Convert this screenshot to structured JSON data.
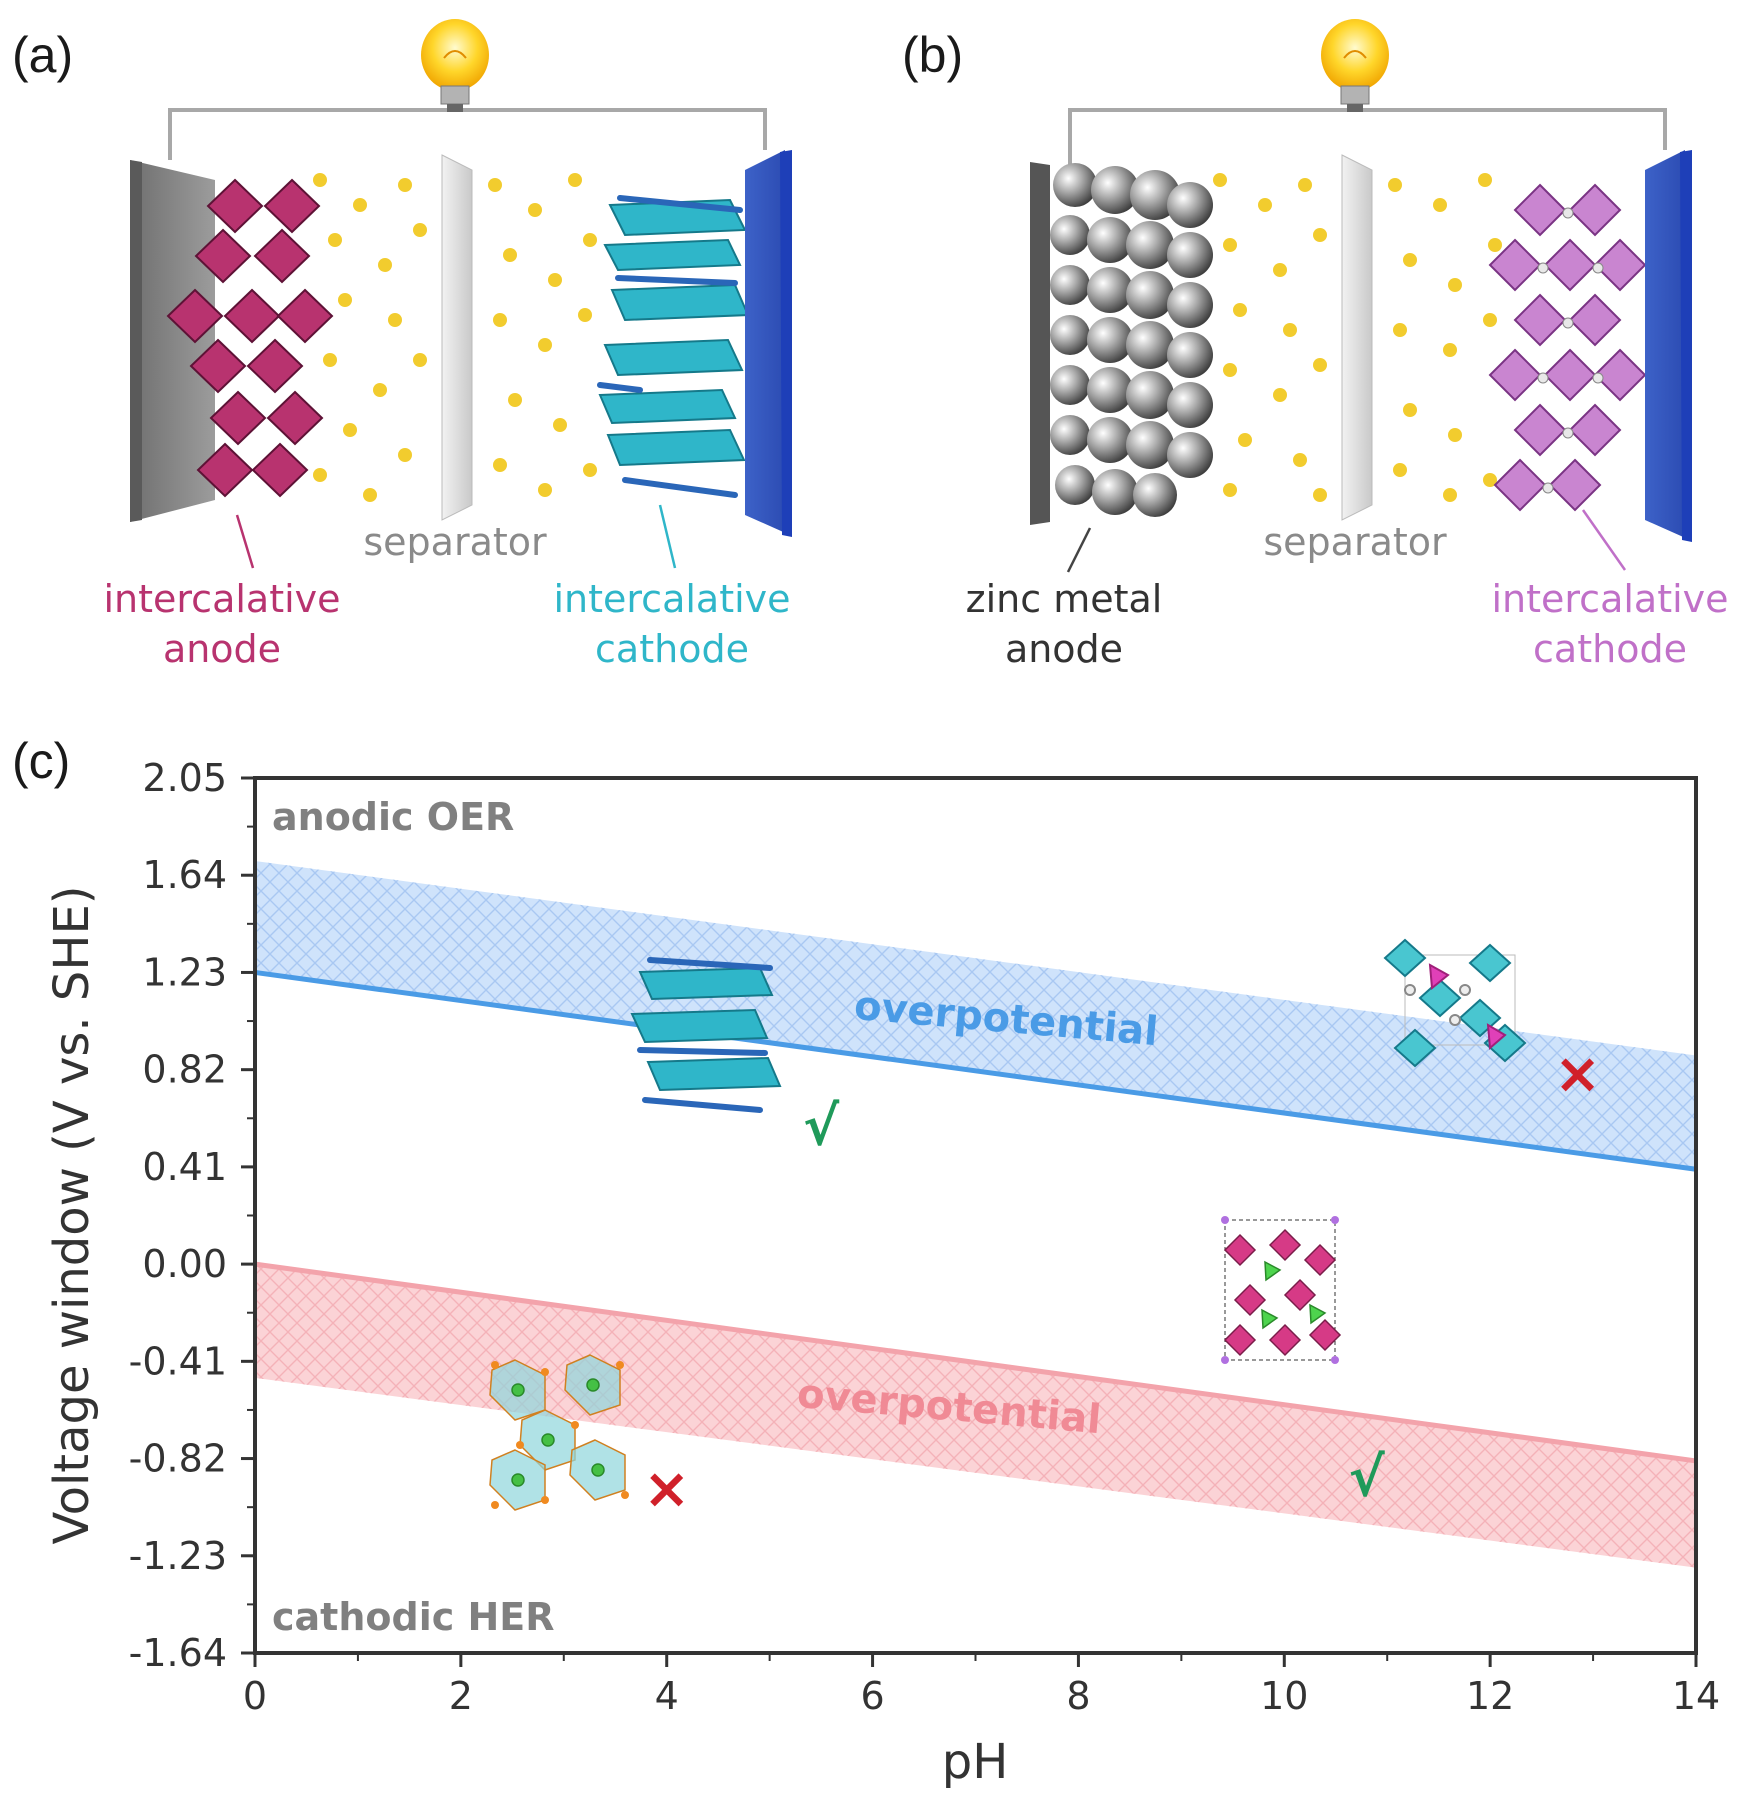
{
  "panels": {
    "a": {
      "label": "(a)",
      "separator": "separator",
      "anode_line1": "intercalative",
      "anode_line2": "anode",
      "cathode_line1": "intercalative",
      "cathode_line2": "cathode"
    },
    "b": {
      "label": "(b)",
      "separator": "separator",
      "anode_line1": "zinc metal",
      "anode_line2": "anode",
      "cathode_line1": "intercalative",
      "cathode_line2": "cathode"
    },
    "c": {
      "label": "(c)"
    }
  },
  "colors": {
    "anode_a": "#b8336f",
    "cathode_a": "#2fb6c9",
    "cathode_b": "#c070c8",
    "separator": "#8a8a8a",
    "oer_line": "#4a9be6",
    "oer_band": "#cfe3fb",
    "her_line": "#f3a3ab",
    "her_band": "#fbd3d6",
    "check": "#1f9a5a",
    "cross": "#d0202a",
    "ion": "#f2cc2e"
  },
  "chart_data": {
    "type": "line",
    "title": "",
    "xlabel": "pH",
    "ylabel": "Voltage window (V vs. SHE)",
    "xlim": [
      0,
      14
    ],
    "ylim": [
      -1.64,
      2.05
    ],
    "xticks": [
      0,
      2,
      4,
      6,
      8,
      10,
      12,
      14
    ],
    "yticks": [
      2.05,
      1.64,
      1.23,
      0.82,
      0.41,
      0.0,
      -0.41,
      -0.82,
      -1.23,
      -1.64
    ],
    "ytick_labels": [
      "2.05",
      "1.64",
      "1.23",
      "0.82",
      "0.41",
      "0.00",
      "-0.41",
      "-0.82",
      "-1.23",
      "-1.64"
    ],
    "series": [
      {
        "name": "OER equilibrium",
        "x": [
          0,
          14
        ],
        "y": [
          1.23,
          0.4
        ]
      },
      {
        "name": "HER equilibrium",
        "x": [
          0,
          14
        ],
        "y": [
          0.0,
          -0.83
        ]
      }
    ],
    "bands": [
      {
        "name": "OER overpotential",
        "x": [
          0,
          14
        ],
        "lower": [
          1.23,
          0.4
        ],
        "upper": [
          1.7,
          0.88
        ]
      },
      {
        "name": "HER overpotential",
        "x": [
          0,
          14
        ],
        "lower": [
          -0.48,
          -1.28
        ],
        "upper": [
          0.0,
          -0.83
        ]
      }
    ],
    "annotations": {
      "top_region": "anodic OER",
      "bottom_region": "cathodic HER",
      "oer_overpotential": "overpotential",
      "her_overpotential": "overpotential",
      "check_mark": "√",
      "cross_mark": "×"
    },
    "markers": [
      {
        "kind": "check",
        "ph": 5.5,
        "v": 0.58
      },
      {
        "kind": "cross",
        "ph": 12.85,
        "v": 0.8
      },
      {
        "kind": "check",
        "ph": 10.8,
        "v": -0.9
      },
      {
        "kind": "cross",
        "ph": 4.0,
        "v": -0.95
      }
    ]
  }
}
